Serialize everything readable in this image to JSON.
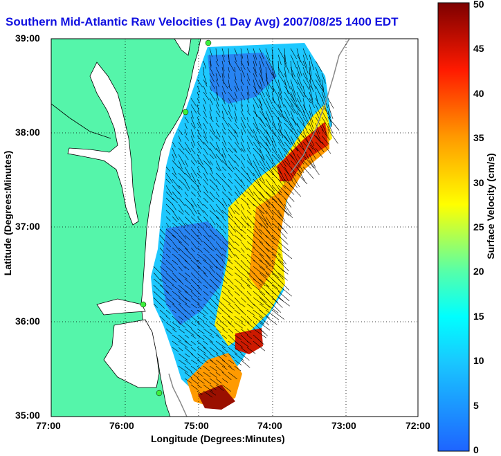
{
  "title": "Southern Mid-Atlantic Raw Velocities (1 Day Avg) 2007/08/25 1400 EDT",
  "x_axis": {
    "label": "Longitude (Degrees:Minutes)",
    "ticks": [
      "77:00",
      "76:00",
      "75:00",
      "74:00",
      "73:00",
      "72:00"
    ]
  },
  "y_axis": {
    "label": "Latitude (Degrees:Minutes)",
    "ticks": [
      "39:00",
      "38:00",
      "37:00",
      "36:00",
      "35:00"
    ]
  },
  "colorbar": {
    "label": "Surface Velocity (cm/s)",
    "ticks": [
      "50",
      "45",
      "40",
      "35",
      "30",
      "25",
      "20",
      "15",
      "10",
      "5",
      "0"
    ],
    "min": 0,
    "max": 50
  },
  "map": {
    "lon_range": [
      -77,
      -72
    ],
    "lat_range": [
      35,
      39
    ],
    "grid": true
  }
}
